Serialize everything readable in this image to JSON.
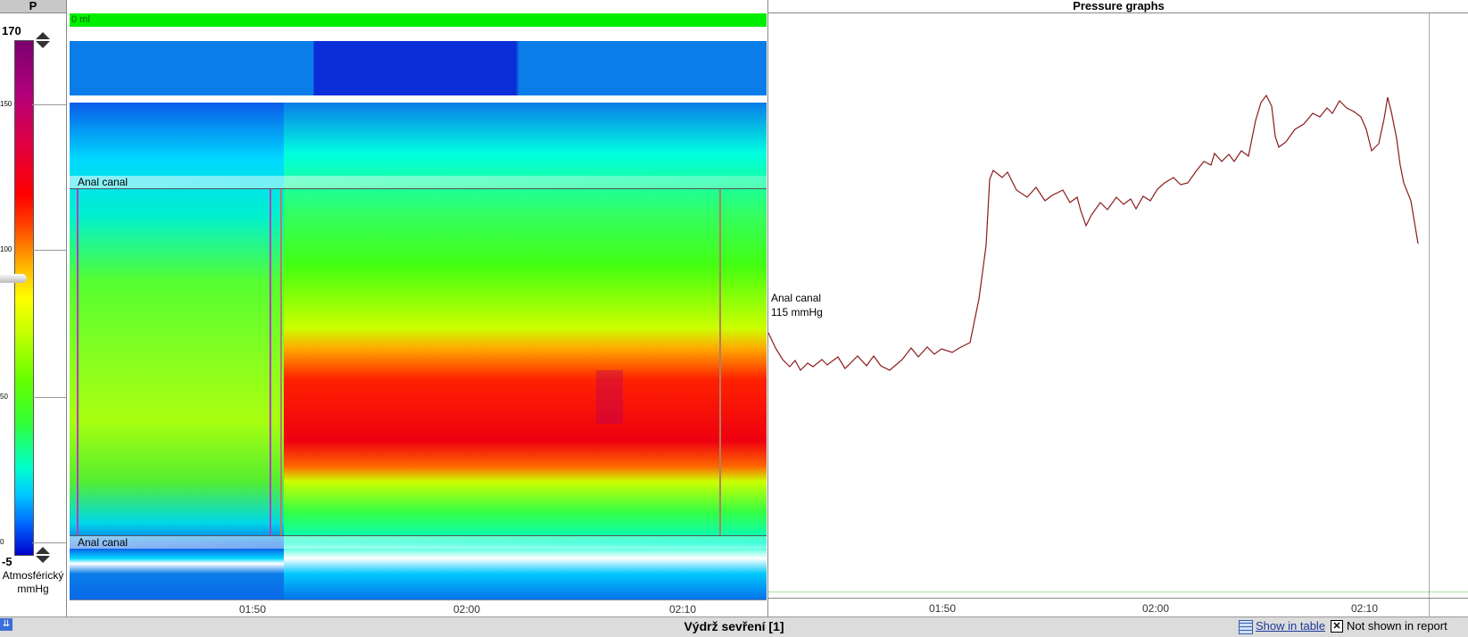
{
  "scale": {
    "header": "P",
    "max": "170",
    "min": "-5",
    "ticks": [
      "150",
      "100",
      "50",
      "0"
    ],
    "unit_line1": "Atmosférický",
    "unit_line2": "mmHg"
  },
  "topography": {
    "volume_label": "0 ml",
    "region_label_top": "Anal canal",
    "region_label_bottom": "Anal canal",
    "time_ticks": [
      "01:50",
      "02:00",
      "02:10"
    ]
  },
  "graph": {
    "title": "Pressure graphs",
    "channel_label": "Anal canal",
    "channel_value": "115 mmHg",
    "time_ticks": [
      "01:50",
      "02:00",
      "02:10"
    ],
    "line_color": "#8b1a1a"
  },
  "status": {
    "title": "Výdrž sevření [1]",
    "show_in_table": "Show in table",
    "not_shown_in_report": "Not shown in report"
  },
  "colors": {
    "accent": "#00ee00",
    "band_light": "#0a7de8",
    "band_dark": "#0a2ed8"
  }
}
